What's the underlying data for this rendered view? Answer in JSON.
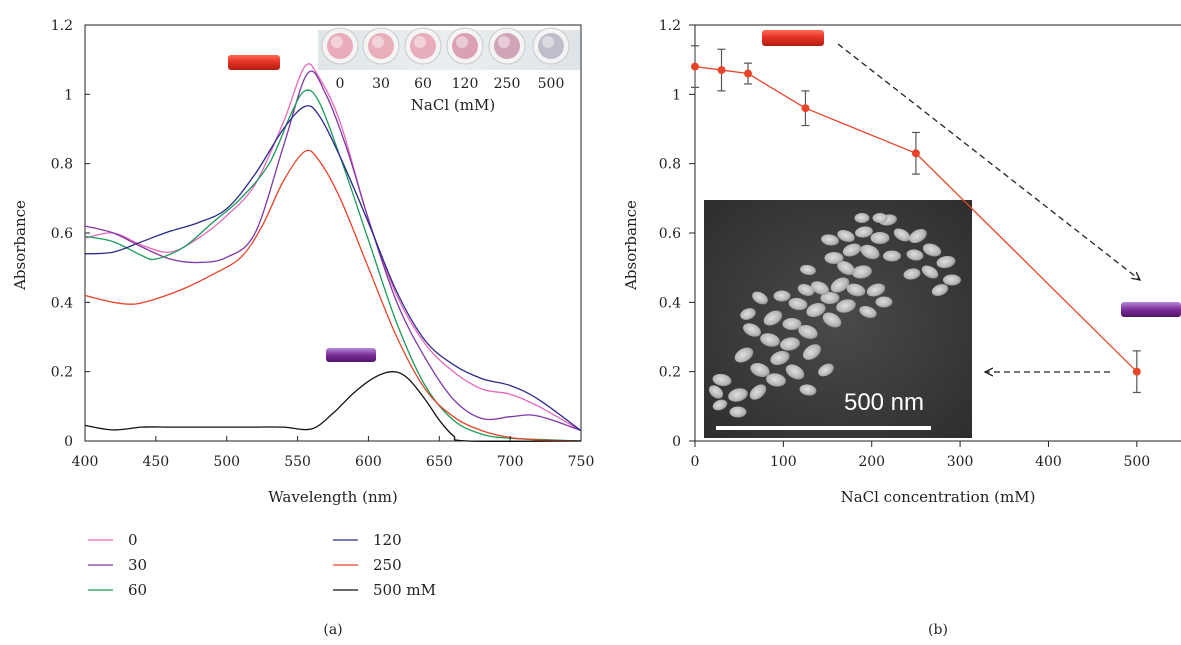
{
  "chart_data": [
    {
      "type": "line",
      "panel_label": "(a)",
      "xlabel": "Wavelength (nm)",
      "ylabel": "Absorbance",
      "xlim": [
        400,
        750
      ],
      "ylim": [
        0,
        1.2
      ],
      "x_ticks": [
        "400",
        "450",
        "500",
        "550",
        "600",
        "650",
        "700",
        "750"
      ],
      "y_ticks": [
        "0",
        "0.2",
        "0.4",
        "0.6",
        "0.8",
        "1",
        "1.2"
      ],
      "legend_placement": "bottom",
      "series": [
        {
          "name": "0",
          "color": "#e667b9",
          "points": [
            [
              400,
              0.585
            ],
            [
              420,
              0.6
            ],
            [
              440,
              0.565
            ],
            [
              460,
              0.545
            ],
            [
              480,
              0.585
            ],
            [
              500,
              0.65
            ],
            [
              520,
              0.74
            ],
            [
              540,
              0.92
            ],
            [
              555,
              1.08
            ],
            [
              565,
              1.05
            ],
            [
              580,
              0.92
            ],
            [
              600,
              0.64
            ],
            [
              620,
              0.42
            ],
            [
              640,
              0.28
            ],
            [
              660,
              0.2
            ],
            [
              680,
              0.15
            ],
            [
              700,
              0.135
            ],
            [
              720,
              0.1
            ],
            [
              750,
              0.03
            ]
          ]
        },
        {
          "name": "30",
          "color": "#7e36a8",
          "points": [
            [
              400,
              0.62
            ],
            [
              420,
              0.6
            ],
            [
              440,
              0.56
            ],
            [
              460,
              0.525
            ],
            [
              480,
              0.515
            ],
            [
              500,
              0.53
            ],
            [
              520,
              0.6
            ],
            [
              540,
              0.85
            ],
            [
              557,
              1.06
            ],
            [
              570,
              1.0
            ],
            [
              585,
              0.84
            ],
            [
              600,
              0.64
            ],
            [
              620,
              0.4
            ],
            [
              640,
              0.24
            ],
            [
              660,
              0.12
            ],
            [
              680,
              0.065
            ],
            [
              700,
              0.07
            ],
            [
              715,
              0.075
            ],
            [
              730,
              0.06
            ],
            [
              750,
              0.03
            ]
          ]
        },
        {
          "name": "60",
          "color": "#1a9a59",
          "points": [
            [
              400,
              0.59
            ],
            [
              420,
              0.575
            ],
            [
              440,
              0.535
            ],
            [
              450,
              0.525
            ],
            [
              470,
              0.56
            ],
            [
              490,
              0.63
            ],
            [
              510,
              0.7
            ],
            [
              530,
              0.8
            ],
            [
              545,
              0.94
            ],
            [
              555,
              1.01
            ],
            [
              565,
              0.98
            ],
            [
              580,
              0.82
            ],
            [
              600,
              0.58
            ],
            [
              620,
              0.34
            ],
            [
              640,
              0.16
            ],
            [
              660,
              0.06
            ],
            [
              680,
              0.02
            ],
            [
              700,
              0.008
            ],
            [
              750,
              0.0
            ]
          ]
        },
        {
          "name": "120",
          "color": "#2b2a8c",
          "points": [
            [
              400,
              0.54
            ],
            [
              420,
              0.545
            ],
            [
              440,
              0.575
            ],
            [
              460,
              0.605
            ],
            [
              480,
              0.63
            ],
            [
              500,
              0.67
            ],
            [
              520,
              0.77
            ],
            [
              540,
              0.9
            ],
            [
              555,
              0.965
            ],
            [
              565,
              0.94
            ],
            [
              580,
              0.82
            ],
            [
              600,
              0.63
            ],
            [
              620,
              0.43
            ],
            [
              640,
              0.29
            ],
            [
              660,
              0.22
            ],
            [
              680,
              0.18
            ],
            [
              700,
              0.16
            ],
            [
              720,
              0.12
            ],
            [
              750,
              0.03
            ]
          ]
        },
        {
          "name": "250",
          "color": "#e8442a",
          "points": [
            [
              400,
              0.42
            ],
            [
              420,
              0.4
            ],
            [
              435,
              0.395
            ],
            [
              450,
              0.41
            ],
            [
              470,
              0.44
            ],
            [
              490,
              0.48
            ],
            [
              510,
              0.53
            ],
            [
              525,
              0.62
            ],
            [
              540,
              0.75
            ],
            [
              555,
              0.835
            ],
            [
              565,
              0.81
            ],
            [
              580,
              0.7
            ],
            [
              600,
              0.5
            ],
            [
              620,
              0.3
            ],
            [
              640,
              0.15
            ],
            [
              660,
              0.07
            ],
            [
              680,
              0.03
            ],
            [
              700,
              0.01
            ],
            [
              720,
              0.003
            ],
            [
              750,
              0.0
            ]
          ]
        },
        {
          "name": "500 mM",
          "color": "#111111",
          "points": [
            [
              400,
              0.045
            ],
            [
              420,
              0.032
            ],
            [
              440,
              0.04
            ],
            [
              460,
              0.04
            ],
            [
              480,
              0.04
            ],
            [
              500,
              0.04
            ],
            [
              520,
              0.04
            ],
            [
              540,
              0.04
            ],
            [
              560,
              0.035
            ],
            [
              575,
              0.08
            ],
            [
              590,
              0.14
            ],
            [
              605,
              0.185
            ],
            [
              618,
              0.2
            ],
            [
              628,
              0.18
            ],
            [
              640,
              0.12
            ],
            [
              650,
              0.06
            ],
            [
              660,
              0.015
            ],
            [
              670,
              0.0
            ],
            [
              750,
              0.0
            ]
          ]
        }
      ],
      "inset_photo": {
        "xlabel": "NaCl (mM)",
        "labels": [
          "0",
          "30",
          "60",
          "120",
          "250",
          "500"
        ],
        "well_colors": [
          "#e9a3b4",
          "#e7a6b4",
          "#e6a5b5",
          "#d898ab",
          "#cd9bb1",
          "#b8b8c6"
        ]
      }
    },
    {
      "type": "line",
      "panel_label": "(b)",
      "xlabel": "NaCl concentration (mM)",
      "ylabel": "Absorbance",
      "xlim": [
        0,
        550
      ],
      "ylim": [
        0,
        1.2
      ],
      "x_ticks": [
        "0",
        "100",
        "200",
        "300",
        "400",
        "500"
      ],
      "y_ticks": [
        "0",
        "0.2",
        "0.4",
        "0.6",
        "0.8",
        "1",
        "1.2"
      ],
      "color": "#e8442a",
      "x": [
        0,
        30,
        60,
        125,
        250,
        500
      ],
      "y": [
        1.08,
        1.07,
        1.06,
        0.96,
        0.83,
        0.2
      ],
      "error": [
        0.06,
        0.06,
        0.03,
        0.05,
        0.06,
        0.06
      ],
      "inset_image": {
        "scale_label": "500 nm"
      }
    }
  ],
  "colors": {
    "red_bar": "#e63324",
    "purple_bar": "#7d2d9a"
  }
}
